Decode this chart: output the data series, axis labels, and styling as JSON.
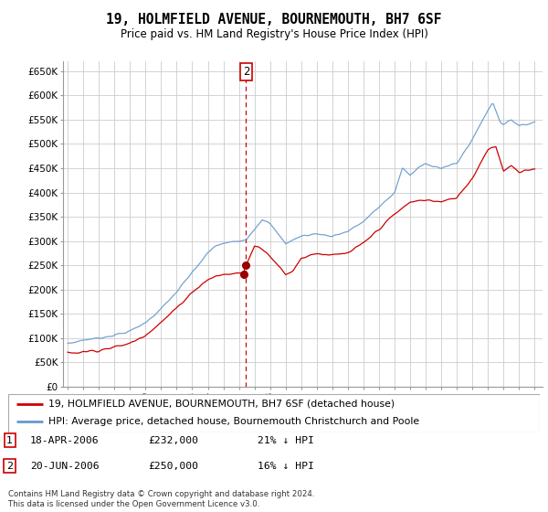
{
  "title": "19, HOLMFIELD AVENUE, BOURNEMOUTH, BH7 6SF",
  "subtitle": "Price paid vs. HM Land Registry's House Price Index (HPI)",
  "ylabel_ticks": [
    "£0",
    "£50K",
    "£100K",
    "£150K",
    "£200K",
    "£250K",
    "£300K",
    "£350K",
    "£400K",
    "£450K",
    "£500K",
    "£550K",
    "£600K",
    "£650K"
  ],
  "ytick_values": [
    0,
    50000,
    100000,
    150000,
    200000,
    250000,
    300000,
    350000,
    400000,
    450000,
    500000,
    550000,
    600000,
    650000
  ],
  "ylim": [
    0,
    670000
  ],
  "transaction1": {
    "date_label": "18-APR-2006",
    "price": 232000,
    "hpi_relation": "21% ↓ HPI",
    "number": 1,
    "x": 2006.29
  },
  "transaction2": {
    "date_label": "20-JUN-2006",
    "price": 250000,
    "hpi_relation": "16% ↓ HPI",
    "number": 2,
    "x": 2006.46
  },
  "legend_line1": "19, HOLMFIELD AVENUE, BOURNEMOUTH, BH7 6SF (detached house)",
  "legend_line2": "HPI: Average price, detached house, Bournemouth Christchurch and Poole",
  "footer": "Contains HM Land Registry data © Crown copyright and database right 2024.\nThis data is licensed under the Open Government Licence v3.0.",
  "hpi_color": "#6699cc",
  "price_color": "#cc0000",
  "bg_color": "#ffffff",
  "grid_color": "#cccccc",
  "annotation_box_color": "#cc0000"
}
